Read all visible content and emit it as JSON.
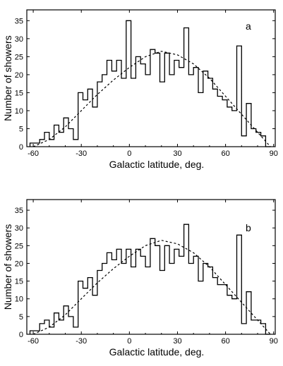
{
  "chart_data": [
    {
      "type": "histogram",
      "panel_label": "a",
      "xlabel": "Galactic latitude, deg.",
      "ylabel": "Number of showers",
      "xlim": [
        -64,
        91
      ],
      "ylim": [
        0,
        38
      ],
      "xticks": [
        -60,
        -30,
        0,
        30,
        60,
        90
      ],
      "yticks": [
        0,
        5,
        10,
        15,
        20,
        25,
        30,
        35
      ],
      "grid": false,
      "bin_edges": [
        -62,
        -59,
        -56,
        -53,
        -50,
        -47,
        -44,
        -41,
        -38,
        -35,
        -32,
        -29,
        -26,
        -23,
        -20,
        -17,
        -14,
        -11,
        -8,
        -5,
        -2,
        1,
        4,
        7,
        10,
        13,
        16,
        19,
        22,
        25,
        28,
        31,
        34,
        37,
        40,
        43,
        46,
        49,
        52,
        55,
        58,
        61,
        64,
        67,
        70,
        73,
        76,
        79,
        82,
        85,
        88
      ],
      "counts": [
        1,
        1,
        2,
        4,
        2,
        6,
        4,
        8,
        5,
        2,
        15,
        13,
        16,
        11,
        18,
        20,
        24,
        21,
        24,
        19,
        35,
        19,
        25,
        23,
        20,
        27,
        26,
        18,
        26,
        20,
        24,
        22,
        33,
        20,
        22,
        15,
        21,
        19,
        16,
        14,
        13,
        11,
        10,
        28,
        3,
        12,
        5,
        4,
        3,
        0
      ],
      "fit_curve": {
        "style": "dashed",
        "x": [
          -60,
          -50,
          -40,
          -30,
          -20,
          -10,
          0,
          10,
          20,
          30,
          40,
          50,
          60,
          70,
          80,
          88
        ],
        "y": [
          0,
          2,
          5.5,
          10,
          14.5,
          18.5,
          22,
          25,
          26.5,
          25.5,
          23,
          19,
          14,
          9,
          4,
          0
        ]
      }
    },
    {
      "type": "histogram",
      "panel_label": "b",
      "xlabel": "Galactic latitude, deg.",
      "ylabel": "Number of showers",
      "xlim": [
        -64,
        91
      ],
      "ylim": [
        0,
        38
      ],
      "xticks": [
        -60,
        -30,
        0,
        30,
        60,
        90
      ],
      "yticks": [
        0,
        5,
        10,
        15,
        20,
        25,
        30,
        35
      ],
      "grid": false,
      "bin_edges": [
        -62,
        -59,
        -56,
        -53,
        -50,
        -47,
        -44,
        -41,
        -38,
        -35,
        -32,
        -29,
        -26,
        -23,
        -20,
        -17,
        -14,
        -11,
        -8,
        -5,
        -2,
        1,
        4,
        7,
        10,
        13,
        16,
        19,
        22,
        25,
        28,
        31,
        34,
        37,
        40,
        43,
        46,
        49,
        52,
        55,
        58,
        61,
        64,
        67,
        70,
        73,
        76,
        79,
        82,
        85,
        88
      ],
      "counts": [
        1,
        1,
        3,
        4,
        2,
        6,
        4,
        8,
        5,
        2,
        15,
        13,
        16,
        11,
        18,
        20,
        23,
        21,
        24,
        20,
        24,
        19,
        24,
        22,
        19,
        27,
        25,
        18,
        25,
        20,
        24,
        22,
        31,
        20,
        22,
        15,
        20,
        19,
        16,
        14,
        14,
        11,
        10,
        28,
        3,
        12,
        4,
        4,
        3,
        0
      ],
      "fit_curve": {
        "style": "dashed",
        "x": [
          -60,
          -50,
          -40,
          -30,
          -20,
          -10,
          0,
          10,
          20,
          30,
          40,
          50,
          60,
          70,
          80,
          88
        ],
        "y": [
          0,
          2,
          5.5,
          10,
          14.5,
          18.5,
          22,
          25,
          26.5,
          25.5,
          23,
          19,
          14,
          9,
          4,
          0
        ]
      }
    }
  ]
}
